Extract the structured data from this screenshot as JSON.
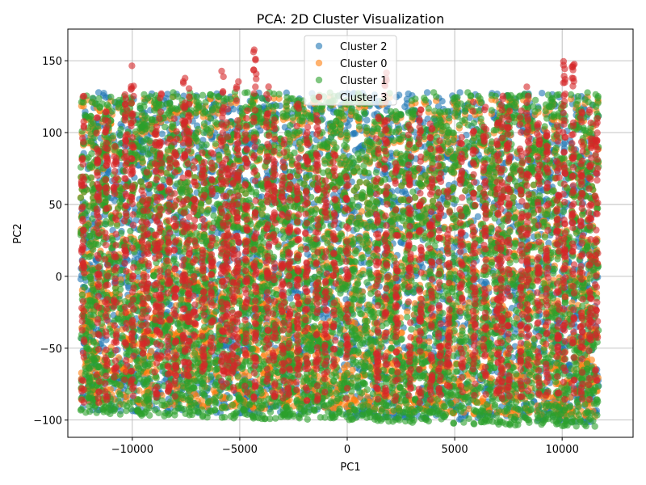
{
  "chart_data": {
    "type": "scatter",
    "title": "PCA: 2D Cluster Visualization",
    "xlabel": "PC1",
    "ylabel": "PC2",
    "xlim": [
      -13000,
      13300
    ],
    "ylim": [
      -112,
      172
    ],
    "xticks": [
      -10000,
      -5000,
      0,
      5000,
      10000
    ],
    "xtick_labels": [
      "−10000",
      "−5000",
      "0",
      "5000",
      "10000"
    ],
    "yticks": [
      -100,
      -50,
      0,
      50,
      100,
      150
    ],
    "ytick_labels": [
      "−100",
      "−50",
      "0",
      "50",
      "100",
      "150"
    ],
    "grid": true,
    "legend_position": "top-center",
    "series": [
      {
        "name": "Cluster 2",
        "color": "#1f77b4",
        "x_range": [
          -12400,
          11700
        ],
        "y_range": [
          -97,
          128
        ],
        "count": 3200
      },
      {
        "name": "Cluster 0",
        "color": "#ff7f0e",
        "x_range": [
          -12400,
          11700
        ],
        "y_range": [
          -93,
          125
        ],
        "count": 3200
      },
      {
        "name": "Cluster 1",
        "color": "#2ca02c",
        "x_range": [
          -12400,
          11700
        ],
        "y_range": [
          -100,
          128
        ],
        "count": 5200
      },
      {
        "name": "Cluster 3",
        "color": "#d62728",
        "columns": [
          [
            -12300,
            -89,
            128
          ],
          [
            -11600,
            -88,
            112
          ],
          [
            -11200,
            -86,
            116
          ],
          [
            -10800,
            -82,
            96
          ],
          [
            -10300,
            -72,
            128
          ],
          [
            -10000,
            -88,
            148
          ],
          [
            -9500,
            -56,
            60
          ],
          [
            -9300,
            -48,
            73
          ],
          [
            -8900,
            -85,
            110
          ],
          [
            -8700,
            -60,
            132
          ],
          [
            -8300,
            -82,
            96
          ],
          [
            -8000,
            -88,
            110
          ],
          [
            -7600,
            -76,
            138
          ],
          [
            -7400,
            -70,
            135
          ],
          [
            -7100,
            -45,
            80
          ],
          [
            -6700,
            -68,
            96
          ],
          [
            -6300,
            -55,
            88
          ],
          [
            -5800,
            -85,
            146
          ],
          [
            -5600,
            -80,
            125
          ],
          [
            -5300,
            -88,
            80
          ],
          [
            -5100,
            -68,
            138
          ],
          [
            -4700,
            -86,
            116
          ],
          [
            -4300,
            -88,
            160
          ],
          [
            -3700,
            -86,
            132
          ],
          [
            -3400,
            -85,
            116
          ],
          [
            -3000,
            -88,
            96
          ],
          [
            -2700,
            -86,
            74
          ],
          [
            -2300,
            -88,
            128
          ],
          [
            -1900,
            -88,
            104
          ],
          [
            -1400,
            -88,
            112
          ],
          [
            -1000,
            -86,
            68
          ],
          [
            -600,
            -68,
            86
          ],
          [
            0,
            -88,
            70
          ],
          [
            1400,
            -88,
            112
          ],
          [
            1800,
            -87,
            142
          ],
          [
            2300,
            -88,
            80
          ],
          [
            2900,
            -88,
            114
          ],
          [
            3400,
            -88,
            120
          ],
          [
            3900,
            -88,
            110
          ],
          [
            4300,
            -84,
            96
          ],
          [
            4700,
            -78,
            68
          ],
          [
            5300,
            -86,
            110
          ],
          [
            5900,
            -86,
            124
          ],
          [
            6400,
            -88,
            120
          ],
          [
            7000,
            -86,
            110
          ],
          [
            7200,
            -85,
            137
          ],
          [
            7500,
            -84,
            124
          ],
          [
            8100,
            -88,
            116
          ],
          [
            8400,
            -88,
            135
          ],
          [
            8900,
            -86,
            112
          ],
          [
            9300,
            -86,
            102
          ],
          [
            9800,
            -82,
            116
          ],
          [
            10100,
            -88,
            155
          ],
          [
            10500,
            -84,
            148
          ],
          [
            10900,
            -86,
            125
          ],
          [
            11300,
            -86,
            118
          ],
          [
            11600,
            -83,
            110
          ]
        ]
      }
    ]
  }
}
